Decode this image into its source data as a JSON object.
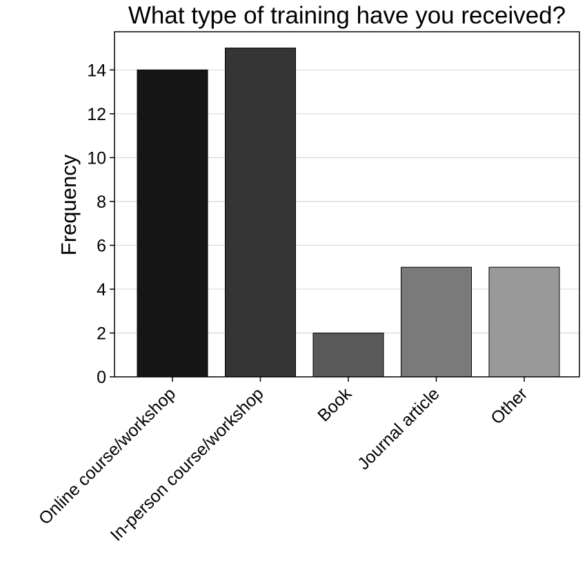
{
  "chart_data": {
    "type": "bar",
    "title": "What type of training have you received?",
    "xlabel": "",
    "ylabel": "Frequency",
    "categories": [
      "Online course/workshop",
      "In-person course/workshop",
      "Book",
      "Journal article",
      "Other"
    ],
    "values": [
      14,
      15,
      2,
      5,
      5
    ],
    "colors": [
      "#161616",
      "#353535",
      "#595959",
      "#7a7a7a",
      "#999999"
    ],
    "ylim": [
      0,
      15
    ],
    "yticks": [
      0,
      2,
      4,
      6,
      8,
      10,
      12,
      14
    ],
    "grid": "horizontal",
    "legend": "none"
  }
}
